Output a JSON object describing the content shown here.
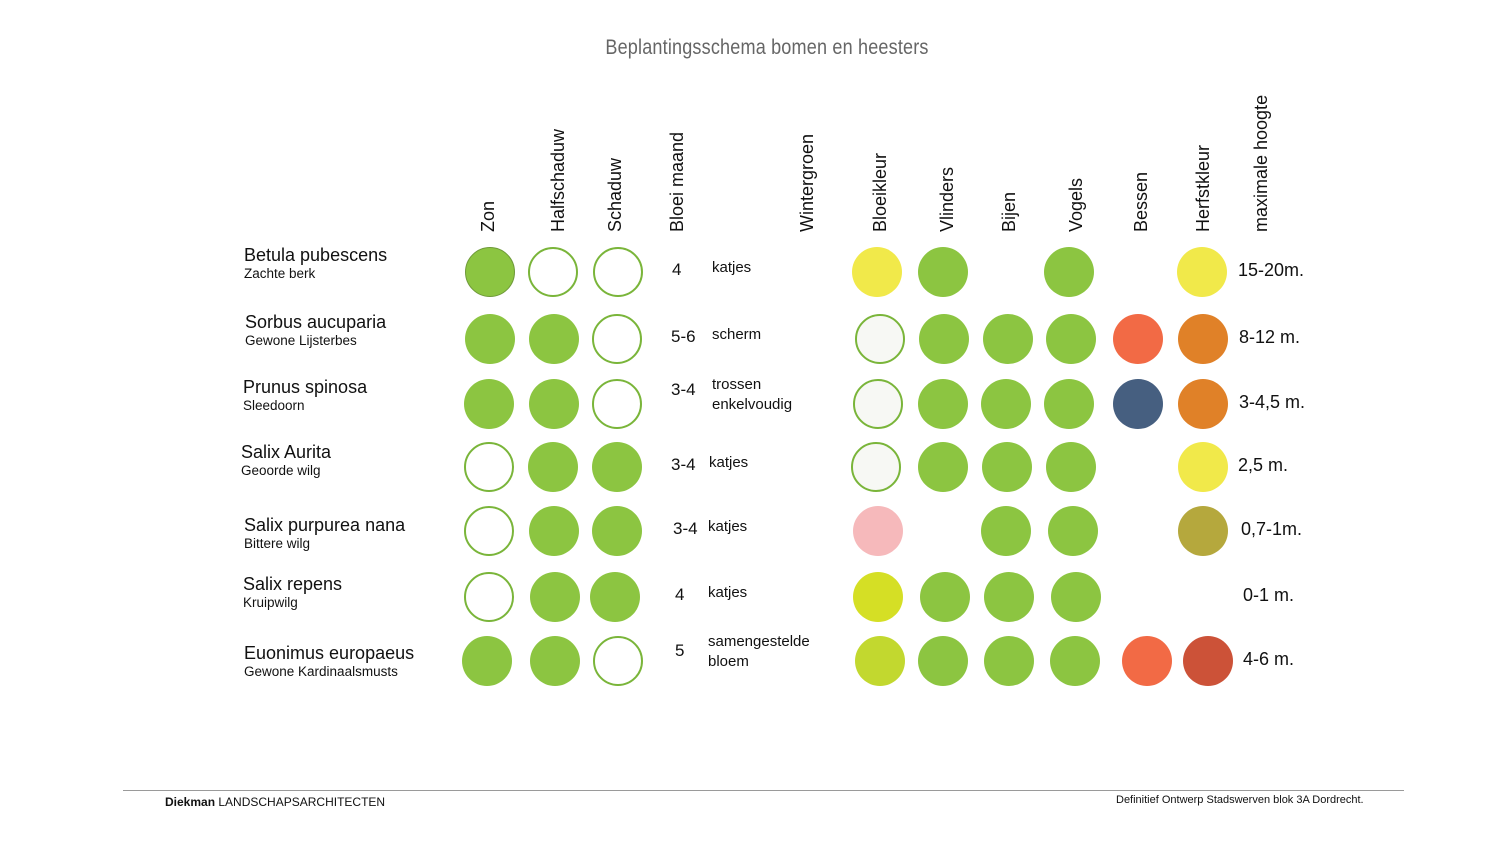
{
  "title": "Beplantingsschema bomen en heesters",
  "columns": {
    "zon": "Zon",
    "halfschaduw": "Halfschaduw",
    "schaduw": "Schaduw",
    "bloei_maand": "Bloei maand",
    "wintergroen": "Wintergroen",
    "bloeikleur": "Bloeikleur",
    "vlinders": "Vlinders",
    "bijen": "Bijen",
    "vogels": "Vogels",
    "bessen": "Bessen",
    "herfstkleur": "Herfstkleur",
    "maximale_hoogte": "maximale hoogte"
  },
  "colors": {
    "green": "#8cc541",
    "green_outline": "#7ab53a",
    "white_fill": "#f7f8f4"
  },
  "rows": [
    {
      "latin": "Betula pubescens",
      "common": "Zachte berk",
      "bloei_maand": "4",
      "bloei_note1": "katjes",
      "bloei_note2": "",
      "hoogte": "15-20m.",
      "zon": "filled",
      "halfschaduw": "outline",
      "schaduw": "outline",
      "bloeikleur": "#f1e94a",
      "vlinders": true,
      "bijen": false,
      "vogels": true,
      "bessen": "",
      "herfstkleur": "#f1e94a"
    },
    {
      "latin": "Sorbus aucuparia",
      "common": "Gewone Lijsterbes",
      "bloei_maand": "5-6",
      "bloei_note1": "scherm",
      "bloei_note2": "",
      "hoogte": "8-12 m.",
      "zon": "filled",
      "halfschaduw": "filled",
      "schaduw": "outline",
      "bloeikleur": "white",
      "vlinders": true,
      "bijen": true,
      "vogels": true,
      "bessen": "#f26a45",
      "herfstkleur": "#e08128"
    },
    {
      "latin": "Prunus spinosa",
      "common": "Sleedoorn",
      "bloei_maand": "3-4",
      "bloei_note1": "trossen",
      "bloei_note2": "enkelvoudig",
      "hoogte": "3-4,5 m.",
      "zon": "filled",
      "halfschaduw": "filled",
      "schaduw": "outline",
      "bloeikleur": "white",
      "vlinders": true,
      "bijen": true,
      "vogels": true,
      "bessen": "#465f80",
      "herfstkleur": "#e08128"
    },
    {
      "latin": "Salix Aurita",
      "common": "Geoorde wilg",
      "bloei_maand": "3-4",
      "bloei_note1": "katjes",
      "bloei_note2": "",
      "hoogte": "2,5 m.",
      "zon": "outline",
      "halfschaduw": "filled",
      "schaduw": "filled",
      "bloeikleur": "white",
      "vlinders": true,
      "bijen": true,
      "vogels": true,
      "bessen": "",
      "herfstkleur": "#f1e94a"
    },
    {
      "latin": "Salix purpurea nana",
      "common": "Bittere wilg",
      "bloei_maand": "3-4",
      "bloei_note1": "katjes",
      "bloei_note2": "",
      "hoogte": "0,7-1m.",
      "zon": "outline",
      "halfschaduw": "filled",
      "schaduw": "filled",
      "bloeikleur": "#f6b9bb",
      "vlinders": false,
      "bijen": true,
      "vogels": true,
      "bessen": "",
      "herfstkleur": "#b5a83d"
    },
    {
      "latin": "Salix repens",
      "common": "Kruipwilg",
      "bloei_maand": "4",
      "bloei_note1": "katjes",
      "bloei_note2": "",
      "hoogte": "0-1 m.",
      "zon": "outline",
      "halfschaduw": "filled",
      "schaduw": "filled",
      "bloeikleur": "#d5df25",
      "vlinders": true,
      "bijen": true,
      "vogels": true,
      "bessen": "",
      "herfstkleur": ""
    },
    {
      "latin": "Euonimus europaeus",
      "common": "Gewone Kardinaalsmusts",
      "bloei_maand": "5",
      "bloei_note1": "samengestelde",
      "bloei_note2": "bloem",
      "hoogte": "4-6 m.",
      "zon": "filled",
      "halfschaduw": "filled",
      "schaduw": "outline",
      "bloeikleur": "#c2d82f",
      "vlinders": true,
      "bijen": true,
      "vogels": true,
      "bessen": "#f26a45",
      "herfstkleur": "#cc5238"
    }
  ],
  "footer": {
    "company_bold": "Diekman",
    "company_rest": "LANDSCHAPSARCHITECTEN",
    "project": "Definitief Ontwerp Stadswerven blok 3A Dordrecht."
  }
}
